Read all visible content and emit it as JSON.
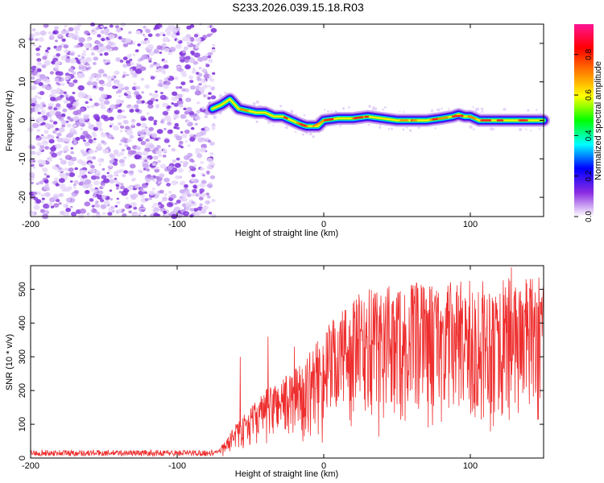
{
  "title": "S233.2026.039.15.18.R03",
  "chart_data": [
    {
      "type": "heatmap",
      "title": "S233.2026.039.15.18.R03",
      "xlabel": "Height of straight line (km)",
      "ylabel": "Frequency (Hz)",
      "xlim": [
        -200,
        150
      ],
      "ylim": [
        -25,
        25
      ],
      "xticks": [
        -200,
        -100,
        0,
        100
      ],
      "yticks": [
        -20,
        -10,
        0,
        10,
        20
      ],
      "noise_region_x": [
        -200,
        -75
      ],
      "ridge": {
        "x": [
          -76,
          -70,
          -64,
          -58,
          -52,
          -46,
          -40,
          -34,
          -28,
          -22,
          -16,
          -12,
          -8,
          -4,
          0,
          10,
          20,
          30,
          40,
          50,
          60,
          70,
          80,
          88,
          92,
          96,
          100,
          106,
          115,
          125,
          135,
          145,
          150
        ],
        "freq": [
          3,
          4,
          5.5,
          3,
          2.5,
          2,
          2,
          1,
          1,
          0,
          -1,
          -1.5,
          -1.5,
          -1.5,
          0,
          0.5,
          0.5,
          1,
          0.5,
          0,
          0,
          0,
          0.5,
          1,
          1.5,
          1,
          1,
          0,
          0,
          0,
          0,
          0,
          0
        ]
      },
      "colorbar": {
        "label": "Normalized spectral amplitude",
        "range": [
          0,
          0.95
        ],
        "ticks": [
          "0.0",
          "0.2",
          "0.4",
          "0.6",
          "0.8"
        ],
        "colors": [
          "#ffffff",
          "#8a2be2",
          "#0000ff",
          "#00ffff",
          "#00ff00",
          "#ffff00",
          "#ff8000",
          "#ff0000",
          "#ff1493"
        ]
      }
    },
    {
      "type": "line",
      "xlabel": "Height of straight line (km)",
      "ylabel": "SNR (10 * v/v)",
      "xlim": [
        -200,
        150
      ],
      "ylim": [
        0,
        570
      ],
      "xticks": [
        -200,
        -100,
        0,
        100
      ],
      "yticks": [
        0,
        100,
        200,
        300,
        400,
        500
      ],
      "color": "#ee2e2e",
      "envelope_x": [
        -200,
        -75,
        -70,
        -60,
        -50,
        -40,
        -30,
        -20,
        -10,
        0,
        10,
        20,
        30,
        40,
        60,
        80,
        100,
        120,
        150
      ],
      "envelope_y": [
        15,
        15,
        30,
        80,
        120,
        160,
        190,
        210,
        250,
        300,
        350,
        380,
        400,
        410,
        415,
        415,
        420,
        425,
        430
      ],
      "spikes": [
        [
          -57,
          300
        ],
        [
          -38,
          360
        ],
        [
          -20,
          330
        ],
        [
          128,
          565
        ],
        [
          130,
          480
        ]
      ]
    }
  ]
}
